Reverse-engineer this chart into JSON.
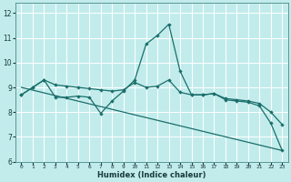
{
  "title": "",
  "xlabel": "Humidex (Indice chaleur)",
  "bg_color": "#c2ecec",
  "line_color": "#1a6e6a",
  "grid_color": "#ffffff",
  "xlim": [
    -0.5,
    23.5
  ],
  "ylim": [
    6,
    12.4
  ],
  "yticks": [
    6,
    7,
    8,
    9,
    10,
    11,
    12
  ],
  "xticks": [
    0,
    1,
    2,
    3,
    4,
    5,
    6,
    7,
    8,
    9,
    10,
    11,
    12,
    13,
    14,
    15,
    16,
    17,
    18,
    19,
    20,
    21,
    22,
    23
  ],
  "line1_x": [
    0,
    1,
    2,
    3,
    4,
    5,
    6,
    7,
    8,
    9,
    10,
    11,
    12,
    13,
    14,
    15,
    16,
    17,
    18,
    19,
    20,
    21,
    22,
    23
  ],
  "line1_y": [
    8.7,
    9.0,
    9.3,
    8.6,
    8.6,
    8.65,
    8.6,
    7.95,
    8.45,
    8.85,
    9.3,
    10.75,
    11.1,
    11.55,
    9.65,
    8.7,
    8.7,
    8.75,
    8.5,
    8.45,
    8.4,
    8.25,
    7.55,
    6.45
  ],
  "line2_x": [
    0,
    1,
    2,
    3,
    4,
    5,
    6,
    7,
    8,
    9,
    10,
    11,
    12,
    13,
    14,
    15,
    16,
    17,
    18,
    19,
    20,
    21,
    22,
    23
  ],
  "line2_y": [
    8.7,
    9.0,
    9.3,
    9.1,
    9.05,
    9.0,
    8.95,
    8.9,
    8.85,
    8.9,
    9.2,
    9.0,
    9.05,
    9.3,
    8.8,
    8.7,
    8.7,
    8.75,
    8.55,
    8.5,
    8.45,
    8.35,
    8.0,
    7.5
  ],
  "line3_x": [
    0,
    23
  ],
  "line3_y": [
    9.0,
    6.45
  ]
}
